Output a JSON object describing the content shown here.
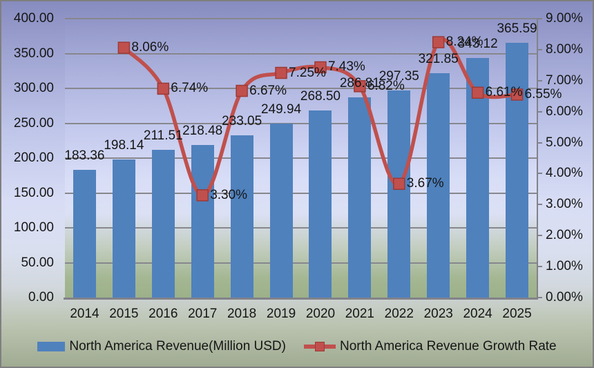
{
  "chart_data": {
    "type": "bar+line",
    "categories": [
      "2014",
      "2015",
      "2016",
      "2017",
      "2018",
      "2019",
      "2020",
      "2021",
      "2022",
      "2023",
      "2024",
      "2025"
    ],
    "series": [
      {
        "name": "North America Revenue(Million USD)",
        "type": "bar",
        "axis": "left",
        "color": "#4F81BD",
        "values": [
          183.36,
          198.14,
          211.51,
          218.48,
          233.05,
          249.94,
          268.5,
          286.81,
          297.35,
          321.85,
          343.12,
          365.59
        ],
        "labels": [
          "183.36",
          "198.14",
          "211.51",
          "218.48",
          "233.05",
          "249.94",
          "268.50",
          "286.81",
          "297.35",
          "321.85",
          "343.12",
          "365.59"
        ]
      },
      {
        "name": "North America Revenue Growth Rate",
        "type": "line",
        "axis": "right",
        "color": "#C0504D",
        "values": [
          null,
          8.06,
          6.74,
          3.3,
          6.67,
          7.25,
          7.43,
          6.82,
          3.67,
          8.24,
          6.61,
          6.55
        ],
        "labels": [
          "",
          "8.06%",
          "6.74%",
          "3.30%",
          "6.67%",
          "7.25%",
          "7.43%",
          "6.82%",
          "3.67%",
          "8.24%",
          "6.61%",
          "6.55%"
        ]
      }
    ],
    "left_axis": {
      "min": 0,
      "max": 400,
      "step": 50,
      "tick_labels": [
        "400.00",
        "350.00",
        "300.00",
        "250.00",
        "200.00",
        "150.00",
        "100.00",
        "50.00",
        "0.00"
      ]
    },
    "right_axis": {
      "min": 0,
      "max": 9,
      "step": 1,
      "tick_labels": [
        "9.00%",
        "8.00%",
        "7.00%",
        "6.00%",
        "5.00%",
        "4.00%",
        "3.00%",
        "2.00%",
        "1.00%",
        "0.00%"
      ]
    },
    "legend_position": "bottom",
    "grid": true
  }
}
